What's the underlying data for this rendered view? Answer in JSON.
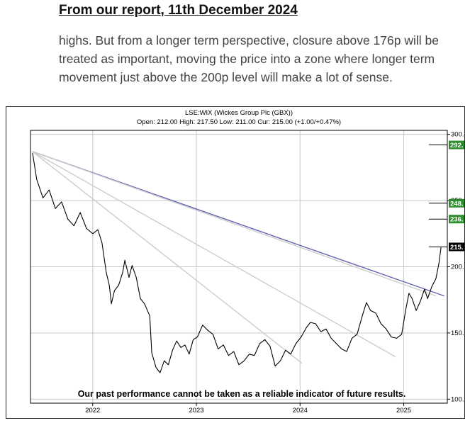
{
  "report": {
    "heading": "From our report, 11th December 2024",
    "paragraph": "highs. But from a longer term perspective, closure above 176p will be treated as important, moving the price into a zone where longer term movement just above the 200p level will make a lot of sense."
  },
  "chart_data": {
    "type": "line",
    "title": "LSE:WIX (Wickes Group Plc (GBX))",
    "subtitle": "Open: 212.00 High: 217.50 Low: 211.00 Cur: 215.00 (+1.00/+0.47%)",
    "disclaimer": "Our past performance cannot be taken as a reliable indicator of future results.",
    "x_ticks": [
      "2022",
      "2023",
      "2024",
      "2025"
    ],
    "y_ticks": [
      "100.",
      "150.",
      "200.",
      "250.",
      "300."
    ],
    "ylim": [
      97,
      303
    ],
    "xlim": [
      2021.4,
      2025.42
    ],
    "grid": true,
    "series": [
      {
        "color": "#000000",
        "points": [
          [
            2021.42,
            286
          ],
          [
            2021.46,
            266
          ],
          [
            2021.52,
            252
          ],
          [
            2021.58,
            258
          ],
          [
            2021.64,
            244
          ],
          [
            2021.7,
            249
          ],
          [
            2021.76,
            236
          ],
          [
            2021.82,
            231
          ],
          [
            2021.88,
            241
          ],
          [
            2021.94,
            229
          ],
          [
            2022.0,
            225
          ],
          [
            2022.05,
            228
          ],
          [
            2022.09,
            218
          ],
          [
            2022.13,
            196
          ],
          [
            2022.16,
            186
          ],
          [
            2022.18,
            172
          ],
          [
            2022.21,
            182
          ],
          [
            2022.25,
            186
          ],
          [
            2022.29,
            196
          ],
          [
            2022.31,
            205
          ],
          [
            2022.35,
            192
          ],
          [
            2022.38,
            201
          ],
          [
            2022.42,
            192
          ],
          [
            2022.46,
            176
          ],
          [
            2022.5,
            172
          ],
          [
            2022.55,
            163
          ],
          [
            2022.57,
            135
          ],
          [
            2022.61,
            124
          ],
          [
            2022.65,
            120
          ],
          [
            2022.69,
            129
          ],
          [
            2022.73,
            126
          ],
          [
            2022.77,
            137
          ],
          [
            2022.81,
            144
          ],
          [
            2022.85,
            139
          ],
          [
            2022.89,
            141
          ],
          [
            2022.93,
            134
          ],
          [
            2022.97,
            145
          ],
          [
            2023.01,
            147
          ],
          [
            2023.06,
            156
          ],
          [
            2023.11,
            152
          ],
          [
            2023.16,
            149
          ],
          [
            2023.21,
            138
          ],
          [
            2023.26,
            141
          ],
          [
            2023.31,
            133
          ],
          [
            2023.36,
            136
          ],
          [
            2023.41,
            126
          ],
          [
            2023.46,
            129
          ],
          [
            2023.51,
            134
          ],
          [
            2023.56,
            133
          ],
          [
            2023.61,
            142
          ],
          [
            2023.66,
            145
          ],
          [
            2023.71,
            140
          ],
          [
            2023.76,
            125
          ],
          [
            2023.81,
            129
          ],
          [
            2023.86,
            137
          ],
          [
            2023.91,
            134
          ],
          [
            2023.96,
            142
          ],
          [
            2024.01,
            147
          ],
          [
            2024.06,
            154
          ],
          [
            2024.1,
            158
          ],
          [
            2024.15,
            157
          ],
          [
            2024.2,
            151
          ],
          [
            2024.25,
            153
          ],
          [
            2024.3,
            146
          ],
          [
            2024.35,
            142
          ],
          [
            2024.4,
            138
          ],
          [
            2024.45,
            136
          ],
          [
            2024.5,
            146
          ],
          [
            2024.55,
            149
          ],
          [
            2024.6,
            163
          ],
          [
            2024.64,
            173
          ],
          [
            2024.68,
            167
          ],
          [
            2024.73,
            165
          ],
          [
            2024.78,
            157
          ],
          [
            2024.83,
            153
          ],
          [
            2024.88,
            147
          ],
          [
            2024.93,
            146
          ],
          [
            2024.98,
            149
          ],
          [
            2025.02,
            168
          ],
          [
            2025.05,
            180
          ],
          [
            2025.08,
            176
          ],
          [
            2025.12,
            167
          ],
          [
            2025.16,
            174
          ],
          [
            2025.2,
            183
          ],
          [
            2025.23,
            176
          ],
          [
            2025.27,
            185
          ],
          [
            2025.31,
            191
          ],
          [
            2025.34,
            203
          ],
          [
            2025.36,
            215
          ]
        ]
      },
      {
        "color": "#6464b4",
        "points": [
          [
            2021.42,
            287
          ],
          [
            2025.39,
            178
          ]
        ]
      },
      {
        "color": "#cccccc",
        "points": [
          [
            2021.42,
            287
          ],
          [
            2024.02,
            127
          ]
        ]
      },
      {
        "color": "#cccccc",
        "points": [
          [
            2021.42,
            287
          ],
          [
            2024.92,
            132
          ]
        ]
      },
      {
        "color": "#cccccc",
        "points": [
          [
            2021.42,
            287
          ],
          [
            2025.31,
            178
          ]
        ]
      }
    ],
    "price_markers": [
      {
        "label": "292.",
        "value": 292,
        "color": "#2e8b2e"
      },
      {
        "label": "248.",
        "value": 248,
        "color": "#2e8b2e"
      },
      {
        "label": "236.",
        "value": 236,
        "color": "#2e8b2e"
      },
      {
        "label": "215.",
        "value": 215,
        "color": "#000000"
      }
    ]
  }
}
